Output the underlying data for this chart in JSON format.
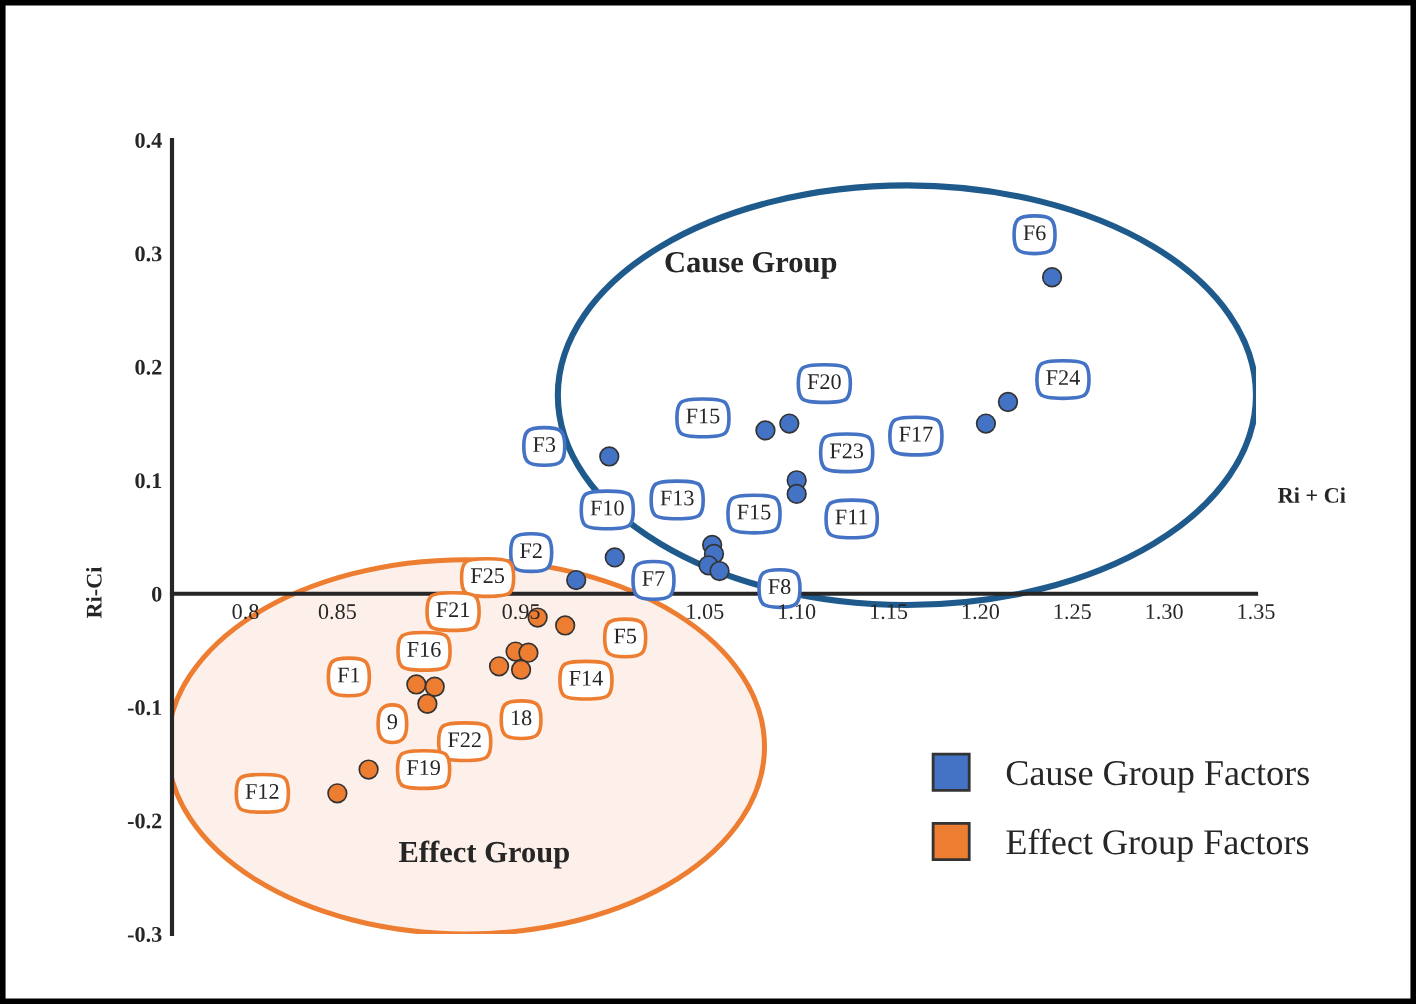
{
  "chart_data": {
    "type": "scatter",
    "xlabel": "Ri + Ci",
    "ylabel": "Ri-Ci",
    "xlim": [
      0.76,
      1.35
    ],
    "ylim": [
      -0.3,
      0.4
    ],
    "xticks": [
      0.8,
      0.85,
      0.95,
      1.05,
      {
        "value": 1.1,
        "label": "1.10"
      },
      1.15,
      {
        "value": 1.2,
        "label": "1.20"
      },
      1.25,
      {
        "value": 1.3,
        "label": "1.30"
      },
      1.35
    ],
    "yticks": [
      -0.3,
      -0.2,
      -0.1,
      0,
      0.1,
      0.2,
      0.3,
      0.4
    ],
    "grid": false,
    "legend": "bottom right",
    "marker": "circle",
    "series": [
      {
        "name": "Cause Group Factors",
        "color": "#4472c4",
        "x": [
          1.239,
          1.215,
          1.203,
          1.096,
          1.083,
          1.1,
          1.1,
          0.998,
          1.001,
          0.98,
          1.054,
          1.055,
          1.052,
          1.058
        ],
        "values": [
          0.279,
          0.169,
          0.15,
          0.15,
          0.144,
          0.1,
          0.088,
          0.121,
          0.032,
          0.012,
          0.043,
          0.035,
          0.025,
          0.02
        ]
      },
      {
        "name": "Effect Group Factors",
        "color": "#ed7d31",
        "x": [
          0.959,
          0.974,
          0.947,
          0.938,
          0.954,
          0.95,
          0.893,
          0.899,
          0.903,
          0.867,
          0.85
        ],
        "values": [
          -0.021,
          -0.028,
          -0.051,
          -0.064,
          -0.052,
          -0.067,
          -0.08,
          -0.097,
          -0.082,
          -0.155,
          -0.176
        ]
      }
    ],
    "annotations": [
      {
        "text": "F6",
        "x": 1.239,
        "y": 0.279
      },
      {
        "text": "F24",
        "x": 1.215,
        "y": 0.169
      },
      {
        "text": "F17",
        "x": 1.203,
        "y": 0.15
      },
      {
        "text": "F20",
        "x": 1.096,
        "y": 0.15
      },
      {
        "text": "F15",
        "x": 1.083,
        "y": 0.144
      },
      {
        "text": "F23",
        "x": 1.1,
        "y": 0.1
      },
      {
        "text": "F11",
        "x": 1.1,
        "y": 0.088
      },
      {
        "text": "F3",
        "x": 0.998,
        "y": 0.121
      },
      {
        "text": "F10",
        "x": 1.001,
        "y": 0.032
      },
      {
        "text": "F2",
        "x": 0.98,
        "y": 0.012
      },
      {
        "text": "F13",
        "x": 1.054,
        "y": 0.043
      },
      {
        "text": "F15",
        "x": 1.055,
        "y": 0.035
      },
      {
        "text": "F7",
        "x": 1.052,
        "y": 0.025
      },
      {
        "text": "F8",
        "x": 1.058,
        "y": 0.02
      },
      {
        "text": "F25",
        "x": 0.959,
        "y": -0.021
      },
      {
        "text": "F5",
        "x": 0.974,
        "y": -0.028
      },
      {
        "text": "F21",
        "x": 0.947,
        "y": -0.051
      },
      {
        "text": "F16",
        "x": 0.938,
        "y": -0.064
      },
      {
        "text": "F14",
        "x": 0.954,
        "y": -0.052
      },
      {
        "text": "18",
        "x": 0.95,
        "y": -0.067
      },
      {
        "text": "F1",
        "x": 0.893,
        "y": -0.08
      },
      {
        "text": "9",
        "x": 0.899,
        "y": -0.097
      },
      {
        "text": "F22",
        "x": 0.903,
        "y": -0.082
      },
      {
        "text": "F19",
        "x": 0.867,
        "y": -0.155
      },
      {
        "text": "F12",
        "x": 0.85,
        "y": -0.176
      },
      "Cause Group",
      "Effect Group"
    ]
  }
}
